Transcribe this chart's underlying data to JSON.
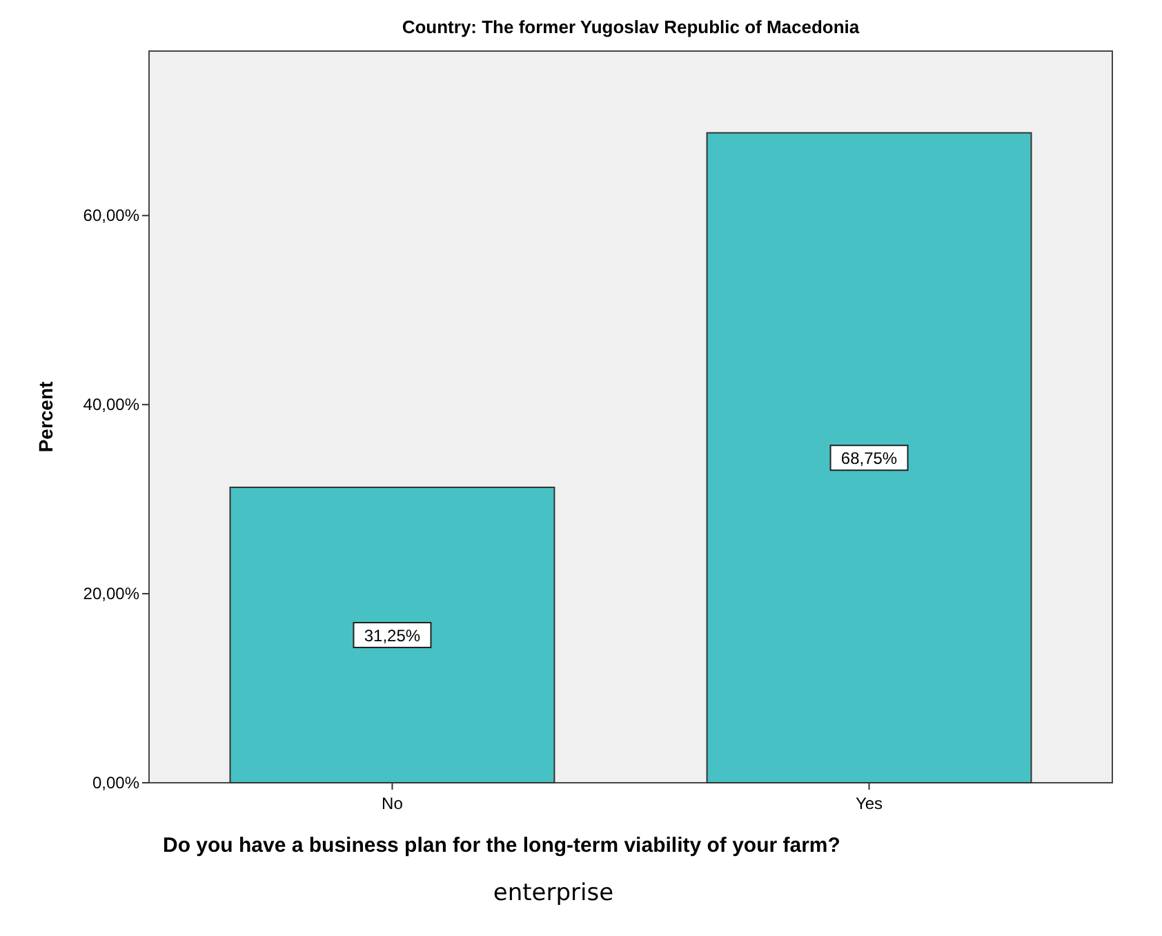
{
  "chart_data": {
    "type": "bar",
    "title": "Country: The former Yugoslav Republic of Macedonia",
    "xlabel": "Do you have a business plan for the long-term viability of your farm?",
    "ylabel": "Percent",
    "annotations": [
      "enterprise"
    ],
    "categories": [
      "No",
      "Yes"
    ],
    "values": [
      31.25,
      68.75
    ],
    "color": "#48c1c4",
    "value_labels": [
      "31,25%",
      "68,75%"
    ],
    "ylim": [
      0,
      77.4
    ],
    "yticks": [
      {
        "value": 0,
        "label": "0,00%"
      },
      {
        "value": 20,
        "label": "20,00%"
      },
      {
        "value": 40,
        "label": "40,00%"
      },
      {
        "value": 60,
        "label": "60,00%"
      }
    ],
    "grid": false
  }
}
